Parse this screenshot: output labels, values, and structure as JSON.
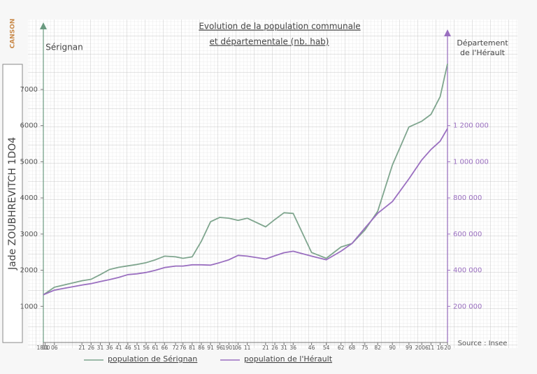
{
  "chart_data": {
    "type": "line",
    "brand": "CANSON",
    "author": "Jade ZOUBHREVITCH 1DO4",
    "title": [
      "Evolution de la population communale",
      "et départementale (nb. hab)"
    ],
    "y_label": "Sérignan",
    "y2_label": [
      "Département",
      "de l'Hérault"
    ],
    "source": "Source : Insee",
    "x": [
      1800,
      1806,
      1821,
      1826,
      1831,
      1836,
      1841,
      1846,
      1851,
      1856,
      1861,
      1866,
      1872,
      1876,
      1881,
      1886,
      1891,
      1896,
      1901,
      1906,
      1911,
      1921,
      1926,
      1931,
      1936,
      1946,
      1954,
      1962,
      1968,
      1975,
      1982,
      1990,
      1999,
      2006,
      2011,
      2016,
      2020
    ],
    "xlim": [
      1800,
      2020
    ],
    "xticks": [
      {
        "value": 1800,
        "label": "1800"
      },
      {
        "value": 1801,
        "label": "01"
      },
      {
        "value": 1806,
        "label": "06"
      },
      {
        "value": 1821,
        "label": "21"
      },
      {
        "value": 1826,
        "label": "26"
      },
      {
        "value": 1831,
        "label": "31"
      },
      {
        "value": 1836,
        "label": "36"
      },
      {
        "value": 1841,
        "label": "41"
      },
      {
        "value": 1846,
        "label": "46"
      },
      {
        "value": 1851,
        "label": "51"
      },
      {
        "value": 1856,
        "label": "56"
      },
      {
        "value": 1861,
        "label": "61"
      },
      {
        "value": 1866,
        "label": "66"
      },
      {
        "value": 1872,
        "label": "72"
      },
      {
        "value": 1876,
        "label": "76"
      },
      {
        "value": 1881,
        "label": "81"
      },
      {
        "value": 1886,
        "label": "86"
      },
      {
        "value": 1891,
        "label": "91"
      },
      {
        "value": 1896,
        "label": "96"
      },
      1901,
      {
        "value": 1906,
        "label": "06"
      },
      {
        "value": 1911,
        "label": "11"
      },
      {
        "value": 1921,
        "label": "21"
      },
      {
        "value": 1926,
        "label": "26"
      },
      {
        "value": 1931,
        "label": "31"
      },
      {
        "value": 1936,
        "label": "36"
      },
      {
        "value": 1946,
        "label": "46"
      },
      {
        "value": 1954,
        "label": "54"
      },
      {
        "value": 1962,
        "label": "62"
      },
      {
        "value": 1968,
        "label": "68"
      },
      {
        "value": 1975,
        "label": "75"
      },
      {
        "value": 1982,
        "label": "82"
      },
      {
        "value": 1990,
        "label": "90"
      },
      {
        "value": 1999,
        "label": "99"
      },
      2006,
      {
        "value": 2011,
        "label": "11"
      },
      {
        "value": 2016,
        "label": "16"
      },
      {
        "value": 2020,
        "label": "20"
      }
    ],
    "ylim": [
      0,
      8700
    ],
    "yticks": [
      1000,
      2000,
      3000,
      4000,
      5000,
      6000,
      7000
    ],
    "y2lim": [
      0,
      1740000
    ],
    "y2ticks": [
      {
        "value": 200000,
        "label": "200 000"
      },
      {
        "value": 400000,
        "label": "400 000"
      },
      {
        "value": 600000,
        "label": "600 000"
      },
      {
        "value": 800000,
        "label": "800 000"
      },
      {
        "value": 1000000,
        "label": "1 000 000"
      },
      {
        "value": 1200000,
        "label": "1 200 000"
      }
    ],
    "series": [
      {
        "name": "population de Sérignan",
        "color": "#7fa58e",
        "values": [
          1320,
          1530,
          1710,
          1750,
          1880,
          2020,
          2080,
          2120,
          2160,
          2210,
          2290,
          2390,
          2370,
          2330,
          2370,
          2800,
          3340,
          3460,
          3440,
          3380,
          3440,
          3200,
          3400,
          3590,
          3570,
          2490,
          2330,
          2640,
          2740,
          3110,
          3630,
          4910,
          5960,
          6120,
          6310,
          6800,
          7710
        ]
      },
      {
        "name": "population de l'Hérault",
        "color": "#9a6fc0",
        "axis": "y2",
        "values": [
          264000,
          290000,
          318000,
          326000,
          337000,
          348000,
          360000,
          376000,
          380000,
          388000,
          400000,
          415000,
          423000,
          423000,
          430000,
          430000,
          428000,
          442000,
          458000,
          482000,
          478000,
          462000,
          480000,
          497000,
          505000,
          478000,
          458000,
          505000,
          548000,
          633000,
          715000,
          780000,
          905000,
          1010000,
          1068000,
          1114000,
          1184000
        ]
      }
    ]
  }
}
